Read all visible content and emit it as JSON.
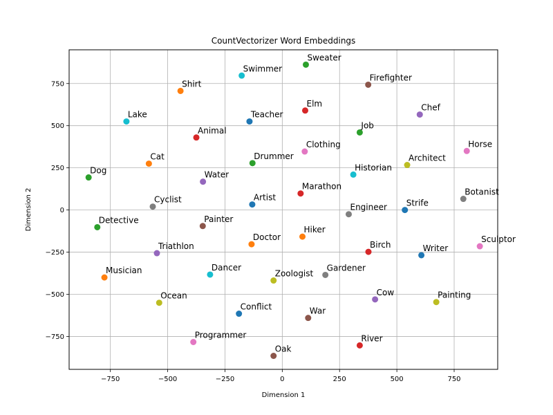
{
  "chart_data": {
    "type": "scatter",
    "title": "CountVectorizer Word Embeddings",
    "xlabel": "Dimension 1",
    "ylabel": "Dimension 2",
    "xlim": [
      -930,
      940
    ],
    "ylim": [
      -945,
      950
    ],
    "xticks": [
      -750,
      -500,
      -250,
      0,
      250,
      500,
      750
    ],
    "yticks": [
      -750,
      -500,
      -250,
      0,
      250,
      500,
      750
    ],
    "xtick_labels": [
      "−750",
      "−500",
      "−250",
      "0",
      "250",
      "500",
      "750"
    ],
    "ytick_labels": [
      "−750",
      "−500",
      "−250",
      "0",
      "250",
      "500",
      "750"
    ],
    "grid": true,
    "points": [
      {
        "label": "Sweater",
        "x": 103,
        "y": 862,
        "color": "#2ca02c"
      },
      {
        "label": "Swimmer",
        "x": -177,
        "y": 797,
        "color": "#17becf"
      },
      {
        "label": "Firefighter",
        "x": 375,
        "y": 743,
        "color": "#8c564b"
      },
      {
        "label": "Shirt",
        "x": -444,
        "y": 706,
        "color": "#ff7f0e"
      },
      {
        "label": "Elm",
        "x": 100,
        "y": 590,
        "color": "#d62728"
      },
      {
        "label": "Chef",
        "x": 600,
        "y": 566,
        "color": "#9467bd"
      },
      {
        "label": "Lake",
        "x": -680,
        "y": 525,
        "color": "#17becf"
      },
      {
        "label": "Teacher",
        "x": -143,
        "y": 525,
        "color": "#1f77b4"
      },
      {
        "label": "Job",
        "x": 338,
        "y": 460,
        "color": "#2ca02c"
      },
      {
        "label": "Animal",
        "x": -375,
        "y": 430,
        "color": "#d62728"
      },
      {
        "label": "Horse",
        "x": 805,
        "y": 350,
        "color": "#e377c2"
      },
      {
        "label": "Clothing",
        "x": 98,
        "y": 347,
        "color": "#e377c2"
      },
      {
        "label": "Drummer",
        "x": -130,
        "y": 278,
        "color": "#2ca02c"
      },
      {
        "label": "Cat",
        "x": -582,
        "y": 275,
        "color": "#ff7f0e"
      },
      {
        "label": "Architect",
        "x": 545,
        "y": 267,
        "color": "#bcbd22"
      },
      {
        "label": "Historian",
        "x": 310,
        "y": 210,
        "color": "#17becf"
      },
      {
        "label": "Dog",
        "x": -845,
        "y": 193,
        "color": "#2ca02c"
      },
      {
        "label": "Water",
        "x": -346,
        "y": 168,
        "color": "#9467bd"
      },
      {
        "label": "Marathon",
        "x": 80,
        "y": 98,
        "color": "#d62728"
      },
      {
        "label": "Botanist",
        "x": 790,
        "y": 66,
        "color": "#7f7f7f"
      },
      {
        "label": "Artist",
        "x": -131,
        "y": 33,
        "color": "#1f77b4"
      },
      {
        "label": "Cyclist",
        "x": -565,
        "y": 20,
        "color": "#7f7f7f"
      },
      {
        "label": "Strife",
        "x": 535,
        "y": 0,
        "color": "#1f77b4"
      },
      {
        "label": "Engineer",
        "x": 290,
        "y": -25,
        "color": "#7f7f7f"
      },
      {
        "label": "Painter",
        "x": -347,
        "y": -95,
        "color": "#8c564b"
      },
      {
        "label": "Detective",
        "x": -807,
        "y": -102,
        "color": "#2ca02c"
      },
      {
        "label": "Hiker",
        "x": 88,
        "y": -158,
        "color": "#ff7f0e"
      },
      {
        "label": "Doctor",
        "x": -134,
        "y": -203,
        "color": "#ff7f0e"
      },
      {
        "label": "Sculptor",
        "x": 862,
        "y": -215,
        "color": "#e377c2"
      },
      {
        "label": "Birch",
        "x": 376,
        "y": -248,
        "color": "#d62728"
      },
      {
        "label": "Triathlon",
        "x": -547,
        "y": -256,
        "color": "#9467bd"
      },
      {
        "label": "Writer",
        "x": 607,
        "y": -268,
        "color": "#1f77b4"
      },
      {
        "label": "Dancer",
        "x": -315,
        "y": -383,
        "color": "#17becf"
      },
      {
        "label": "Gardener",
        "x": 188,
        "y": -385,
        "color": "#7f7f7f"
      },
      {
        "label": "Musician",
        "x": -776,
        "y": -400,
        "color": "#ff7f0e"
      },
      {
        "label": "Zoologist",
        "x": -38,
        "y": -418,
        "color": "#bcbd22"
      },
      {
        "label": "Cow",
        "x": 405,
        "y": -530,
        "color": "#9467bd"
      },
      {
        "label": "Ocean",
        "x": -537,
        "y": -550,
        "color": "#bcbd22"
      },
      {
        "label": "Painting",
        "x": 672,
        "y": -546,
        "color": "#bcbd22"
      },
      {
        "label": "Conflict",
        "x": -189,
        "y": -615,
        "color": "#1f77b4"
      },
      {
        "label": "War",
        "x": 113,
        "y": -640,
        "color": "#8c564b"
      },
      {
        "label": "Programmer",
        "x": -388,
        "y": -783,
        "color": "#e377c2"
      },
      {
        "label": "River",
        "x": 338,
        "y": -803,
        "color": "#d62728"
      },
      {
        "label": "Oak",
        "x": -38,
        "y": -865,
        "color": "#8c564b"
      }
    ]
  }
}
